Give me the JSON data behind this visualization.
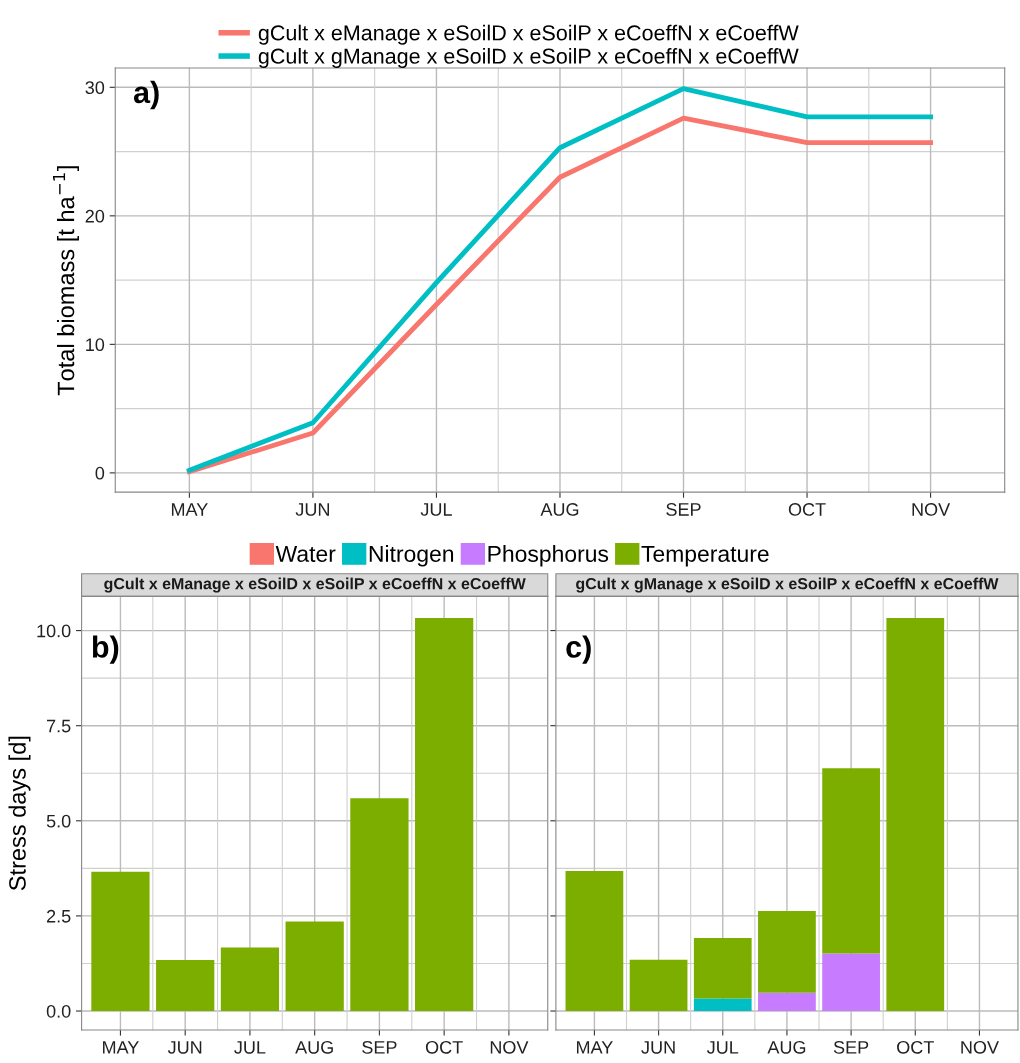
{
  "chart_data": [
    {
      "type": "line",
      "categories": [
        "MAY",
        "JUN",
        "JUL",
        "AUG",
        "SEP",
        "OCT",
        "NOV"
      ],
      "ylabel": "Total biomass [t ha$^{−1}$]",
      "ylim": [
        -1.5,
        31.5
      ],
      "yticks": [
        0,
        10,
        20,
        30
      ],
      "grid": true,
      "legend": "top",
      "marker": "none",
      "line_style": "solid",
      "annotations": [
        "a)"
      ],
      "series": [
        {
          "name": "gCult x eManage x eSoilD x eSoilP x eCoeffN x eCoeffW",
          "color": "#f8766d",
          "values": [
            0.1,
            3.1,
            13.1,
            23.0,
            27.6,
            25.7,
            25.7
          ]
        },
        {
          "name": "gCult x gManage x eSoilD x eSoilP x eCoeffN x eCoeffW",
          "color": "#00bfc4",
          "values": [
            0.2,
            3.9,
            14.8,
            25.3,
            29.9,
            27.7,
            27.7
          ]
        }
      ]
    },
    {
      "type": "bar",
      "stacked": true,
      "title": "gCult x eManage x eSoilD x eSoilP x eCoeffN x eCoeffW",
      "categories": [
        "MAY",
        "JUN",
        "JUL",
        "AUG",
        "SEP",
        "OCT",
        "NOV"
      ],
      "ylabel": "Stress days [d]",
      "ylim": [
        -0.5,
        10.9
      ],
      "yticks": [
        {
          "value": 0,
          "label": "0.0"
        },
        {
          "value": 2.5,
          "label": "2.5"
        },
        {
          "value": 5,
          "label": "5.0"
        },
        {
          "value": 7.5,
          "label": "7.5"
        },
        {
          "value": 10,
          "label": "10.0"
        }
      ],
      "grid": true,
      "legend": "top",
      "annotations": [
        "b)"
      ],
      "series": [
        {
          "name": "Water",
          "color": "#f8766d",
          "values": [
            0,
            0,
            0,
            0,
            0,
            0,
            0
          ]
        },
        {
          "name": "Nitrogen",
          "color": "#00bfc4",
          "values": [
            0,
            0,
            0,
            0,
            0,
            0,
            0
          ]
        },
        {
          "name": "Phosphorus",
          "color": "#c77cff",
          "values": [
            0,
            0,
            0,
            0,
            0,
            0,
            0
          ]
        },
        {
          "name": "Temperature",
          "color": "#7cae00",
          "values": [
            3.66,
            1.34,
            1.67,
            2.35,
            5.59,
            10.33,
            0
          ]
        }
      ]
    },
    {
      "type": "bar",
      "stacked": true,
      "title": "gCult x gManage x eSoilD x eSoilP x eCoeffN x eCoeffW",
      "categories": [
        "MAY",
        "JUN",
        "JUL",
        "AUG",
        "SEP",
        "OCT",
        "NOV"
      ],
      "ylim": [
        -0.5,
        10.9
      ],
      "yticks": [
        0,
        2.5,
        5,
        7.5,
        10
      ],
      "grid": true,
      "tick_labels": "x",
      "annotations": [
        "c)"
      ],
      "series": [
        {
          "color": "#f8766d",
          "values": [
            0,
            0,
            0,
            0,
            0,
            0,
            0
          ]
        },
        {
          "color": "#00bfc4",
          "values": [
            0,
            0,
            0.33,
            0,
            0,
            0,
            0
          ]
        },
        {
          "color": "#c77cff",
          "values": [
            0,
            0,
            0,
            0.48,
            1.51,
            0,
            0
          ]
        },
        {
          "color": "#7cae00",
          "values": [
            3.68,
            1.35,
            1.59,
            2.15,
            4.87,
            10.33,
            0
          ]
        }
      ]
    }
  ]
}
